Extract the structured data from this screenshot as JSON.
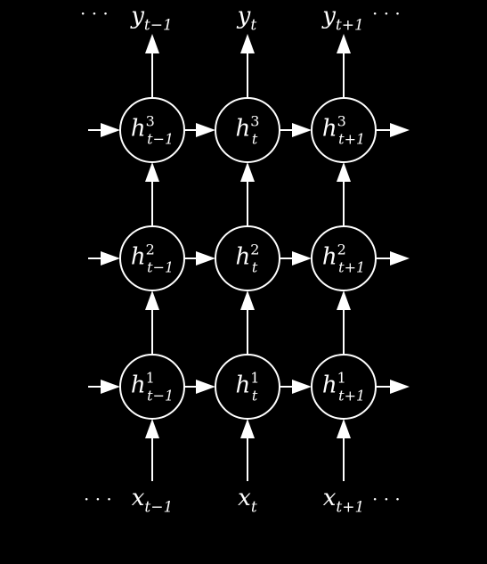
{
  "colors": {
    "background": "#000000",
    "foreground": "#ffffff"
  },
  "ellipsis": "· · ·",
  "columns": [
    {
      "output": {
        "base": "y",
        "sub": "t−1"
      },
      "input": {
        "base": "x",
        "sub": "t−1"
      }
    },
    {
      "output": {
        "base": "y",
        "sub": "t"
      },
      "input": {
        "base": "x",
        "sub": "t"
      }
    },
    {
      "output": {
        "base": "y",
        "sub": "t+1"
      },
      "input": {
        "base": "x",
        "sub": "t+1"
      }
    }
  ],
  "layers": [
    {
      "sup": "3",
      "nodes": [
        {
          "base": "h",
          "sub": "t−1"
        },
        {
          "base": "h",
          "sub": "t"
        },
        {
          "base": "h",
          "sub": "t+1"
        }
      ]
    },
    {
      "sup": "2",
      "nodes": [
        {
          "base": "h",
          "sub": "t−1"
        },
        {
          "base": "h",
          "sub": "t"
        },
        {
          "base": "h",
          "sub": "t+1"
        }
      ]
    },
    {
      "sup": "1",
      "nodes": [
        {
          "base": "h",
          "sub": "t−1"
        },
        {
          "base": "h",
          "sub": "t"
        },
        {
          "base": "h",
          "sub": "t+1"
        }
      ]
    }
  ]
}
